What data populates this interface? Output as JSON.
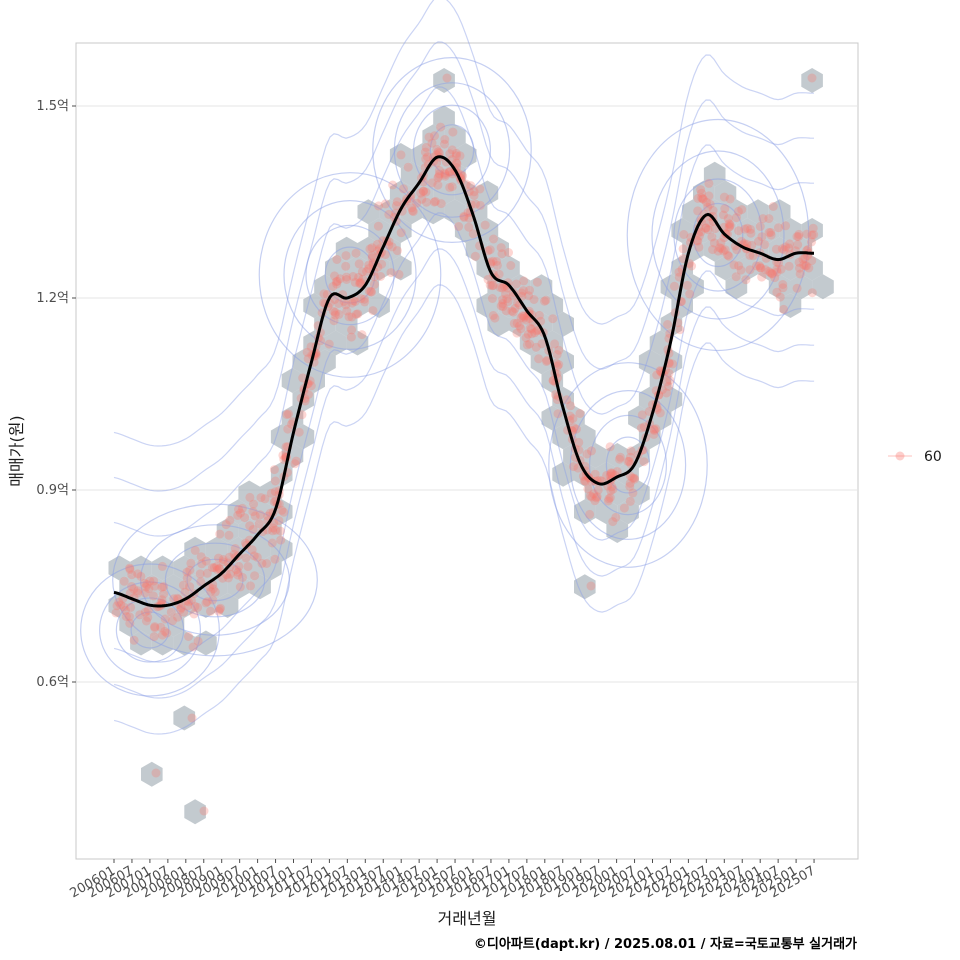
{
  "chart_data": {
    "type": "scatter",
    "xlabel": "거래년월",
    "ylabel": "매매가(원)",
    "caption": "©디아파트(dapt.kr) / 2025.08.01 / 자료=국토교통부 실거래가",
    "legend": {
      "placement": "right",
      "entries": [
        "60"
      ]
    },
    "grid": true,
    "y_unit": "억",
    "ylim": [
      0.33,
      1.6
    ],
    "y_ticks": [
      {
        "value": 0.6,
        "label": "0.6억"
      },
      {
        "value": 0.9,
        "label": "0.9억"
      },
      {
        "value": 1.2,
        "label": "1.2억"
      },
      {
        "value": 1.5,
        "label": "1.5억"
      }
    ],
    "x_ticks": [
      "200601",
      "200607",
      "200701",
      "200707",
      "200801",
      "200807",
      "200901",
      "200907",
      "201001",
      "201007",
      "201101",
      "201107",
      "201201",
      "201207",
      "201301",
      "201307",
      "201401",
      "201407",
      "201501",
      "201507",
      "201601",
      "201607",
      "201701",
      "201707",
      "201801",
      "201807",
      "201901",
      "201907",
      "202001",
      "202007",
      "202101",
      "202107",
      "202201",
      "202207",
      "202301",
      "202307",
      "202401",
      "202407",
      "202501",
      "202507"
    ],
    "series": [
      {
        "name": "60",
        "kind": "trend-line",
        "color": "#000000",
        "x": [
          "2006-01",
          "2006-07",
          "2007-01",
          "2007-07",
          "2008-01",
          "2008-07",
          "2009-01",
          "2009-07",
          "2010-01",
          "2010-07",
          "2011-01",
          "2011-07",
          "2012-01",
          "2012-07",
          "2013-01",
          "2013-07",
          "2014-01",
          "2014-07",
          "2015-01",
          "2015-07",
          "2016-01",
          "2016-07",
          "2017-01",
          "2017-07",
          "2018-01",
          "2018-07",
          "2019-01",
          "2019-07",
          "2020-01",
          "2020-07",
          "2021-01",
          "2021-07",
          "2022-01",
          "2022-07",
          "2023-01",
          "2023-07",
          "2024-01",
          "2024-07",
          "2025-01",
          "2025-07"
        ],
        "y": [
          0.74,
          0.73,
          0.72,
          0.72,
          0.73,
          0.75,
          0.77,
          0.8,
          0.83,
          0.87,
          0.99,
          1.1,
          1.2,
          1.2,
          1.22,
          1.28,
          1.34,
          1.38,
          1.42,
          1.4,
          1.33,
          1.24,
          1.22,
          1.18,
          1.14,
          1.03,
          0.94,
          0.91,
          0.92,
          0.94,
          1.02,
          1.13,
          1.27,
          1.33,
          1.3,
          1.28,
          1.27,
          1.26,
          1.27,
          1.27
        ]
      }
    ],
    "colors": {
      "points": "#f8766d",
      "hexbins": "#a9b3ba",
      "contours": "#8ca0e6",
      "trend": "#000000",
      "grid": "#e5e5e5",
      "panel_border": "#c8c8c8"
    }
  }
}
